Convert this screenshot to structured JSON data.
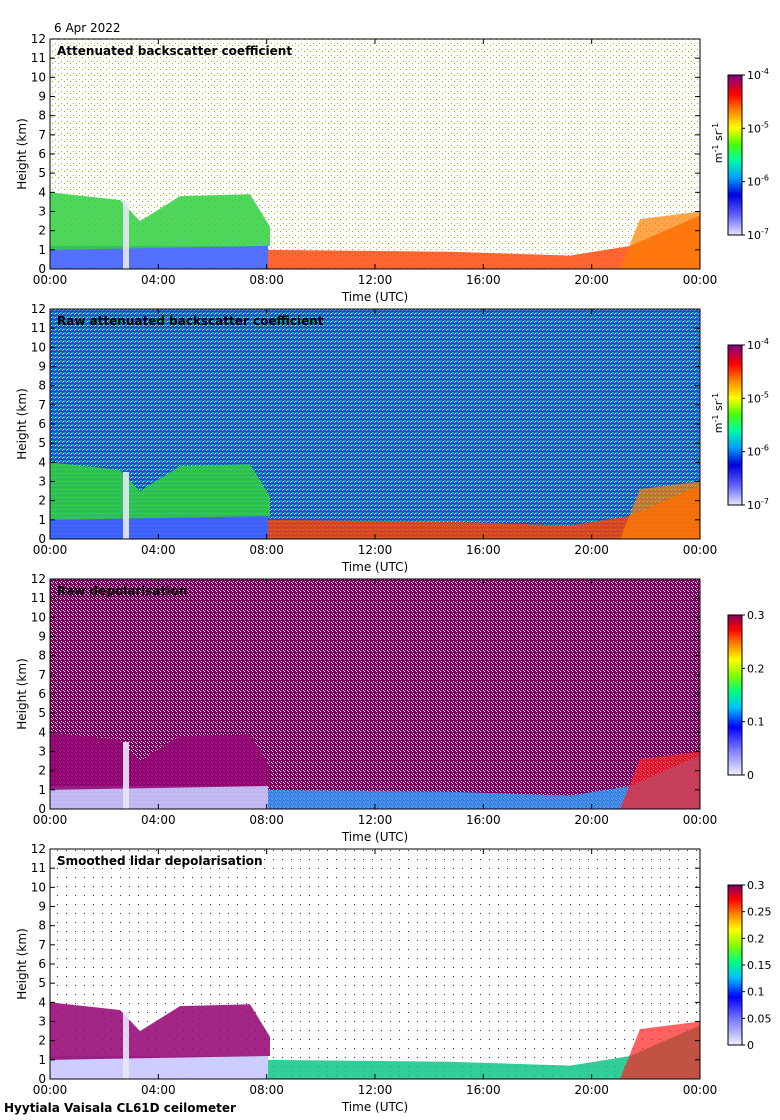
{
  "date": "6 Apr 2022",
  "instrument": "Hyytiala Vaisala CL61D ceilometer",
  "chart_data": [
    {
      "type": "heatmap",
      "title": "Attenuated backscatter coefficient",
      "xlabel": "Time (UTC)",
      "ylabel": "Height (km)",
      "x_ticks": [
        "00:00",
        "04:00",
        "08:00",
        "12:00",
        "16:00",
        "20:00",
        "00:00"
      ],
      "y_ticks": [
        0,
        1,
        2,
        3,
        4,
        5,
        6,
        7,
        8,
        9,
        10,
        11,
        12
      ],
      "ylim": [
        0,
        12
      ],
      "colorbar": {
        "scale": "log",
        "ticks": [
          {
            "base": "10",
            "exp": "-7"
          },
          {
            "base": "10",
            "exp": "-6"
          },
          {
            "base": "10",
            "exp": "-5"
          },
          {
            "base": "10",
            "exp": "-4"
          }
        ],
        "units": {
          "a": "m",
          "ae": "-1",
          "b": " sr",
          "be": "-1"
        }
      }
    },
    {
      "type": "heatmap",
      "title": "Raw attenuated backscatter coefficient",
      "xlabel": "Time (UTC)",
      "ylabel": "Height (km)",
      "x_ticks": [
        "00:00",
        "04:00",
        "08:00",
        "12:00",
        "16:00",
        "20:00",
        "00:00"
      ],
      "y_ticks": [
        0,
        1,
        2,
        3,
        4,
        5,
        6,
        7,
        8,
        9,
        10,
        11,
        12
      ],
      "ylim": [
        0,
        12
      ],
      "colorbar": {
        "scale": "log",
        "ticks": [
          {
            "base": "10",
            "exp": "-7"
          },
          {
            "base": "10",
            "exp": "-6"
          },
          {
            "base": "10",
            "exp": "-5"
          },
          {
            "base": "10",
            "exp": "-4"
          }
        ],
        "units": {
          "a": "m",
          "ae": "-1",
          "b": " sr",
          "be": "-1"
        }
      }
    },
    {
      "type": "heatmap",
      "title": "Raw depolarisation",
      "xlabel": "Time (UTC)",
      "ylabel": "Height (km)",
      "x_ticks": [
        "00:00",
        "04:00",
        "08:00",
        "12:00",
        "16:00",
        "20:00",
        "00:00"
      ],
      "y_ticks": [
        0,
        1,
        2,
        3,
        4,
        5,
        6,
        7,
        8,
        9,
        10,
        11,
        12
      ],
      "ylim": [
        0,
        12
      ],
      "colorbar": {
        "scale": "linear",
        "ticks": [
          "0",
          "0.1",
          "0.2",
          "0.3"
        ]
      }
    },
    {
      "type": "heatmap",
      "title": "Smoothed lidar depolarisation",
      "xlabel": "Time (UTC)",
      "ylabel": "Height (km)",
      "x_ticks": [
        "00:00",
        "04:00",
        "08:00",
        "12:00",
        "16:00",
        "20:00",
        "00:00"
      ],
      "y_ticks": [
        0,
        1,
        2,
        3,
        4,
        5,
        6,
        7,
        8,
        9,
        10,
        11,
        12
      ],
      "ylim": [
        0,
        12
      ],
      "colorbar": {
        "scale": "linear",
        "ticks": [
          "0",
          "0.05",
          "0.1",
          "0.15",
          "0.2",
          "0.25",
          "0.3"
        ]
      }
    }
  ]
}
